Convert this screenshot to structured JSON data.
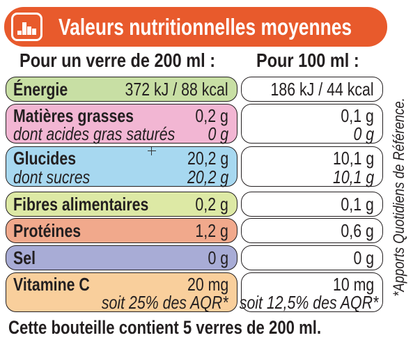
{
  "header": {
    "title": "Valeurs nutritionnelles moyennes",
    "icon": "bar-chart-icon",
    "color": "#e85a2c"
  },
  "columns": {
    "left": "Pour un verre de 200 ml :",
    "right": "Pour 100 ml :"
  },
  "rows": [
    {
      "label": "Énergie",
      "value_glass": "372 kJ / 88 kcal",
      "value_100ml": "186 kJ / 44 kcal",
      "color": "#c8dfa4"
    },
    {
      "label": "Matières grasses",
      "value_glass": "0,2 g",
      "value_100ml": "0,1 g",
      "sub_label": "dont acides gras saturés",
      "sub_value_glass": "0 g",
      "sub_value_100ml": "0 g",
      "color": "#f2b6d3"
    },
    {
      "label": "Glucides",
      "value_glass": "20,2 g",
      "value_100ml": "10,1 g",
      "sub_label": "dont sucres",
      "sub_value_glass": "20,2 g",
      "sub_value_100ml": "10,1 g",
      "color": "#a7d8f0"
    },
    {
      "label": "Fibres alimentaires",
      "value_glass": "0,2 g",
      "value_100ml": "0,1 g",
      "color": "#dde9a5"
    },
    {
      "label": "Protéines",
      "value_glass": "1,2 g",
      "value_100ml": "0,6 g",
      "color": "#f1a98c"
    },
    {
      "label": "Sel",
      "value_glass": "0 g",
      "value_100ml": "0 g",
      "color": "#a8acd6"
    },
    {
      "label": "Vitamine C",
      "value_glass": "20 mg",
      "value_100ml": "10 mg",
      "sub_value_glass": "soit 25% des AQR*",
      "sub_value_100ml": "soit 12,5% des AQR*",
      "color": "#f9cf9c"
    }
  ],
  "side_note": "*Apports Quotidiens de Référence.",
  "footer": "Cette bouteille contient 5 verres de 200 ml."
}
